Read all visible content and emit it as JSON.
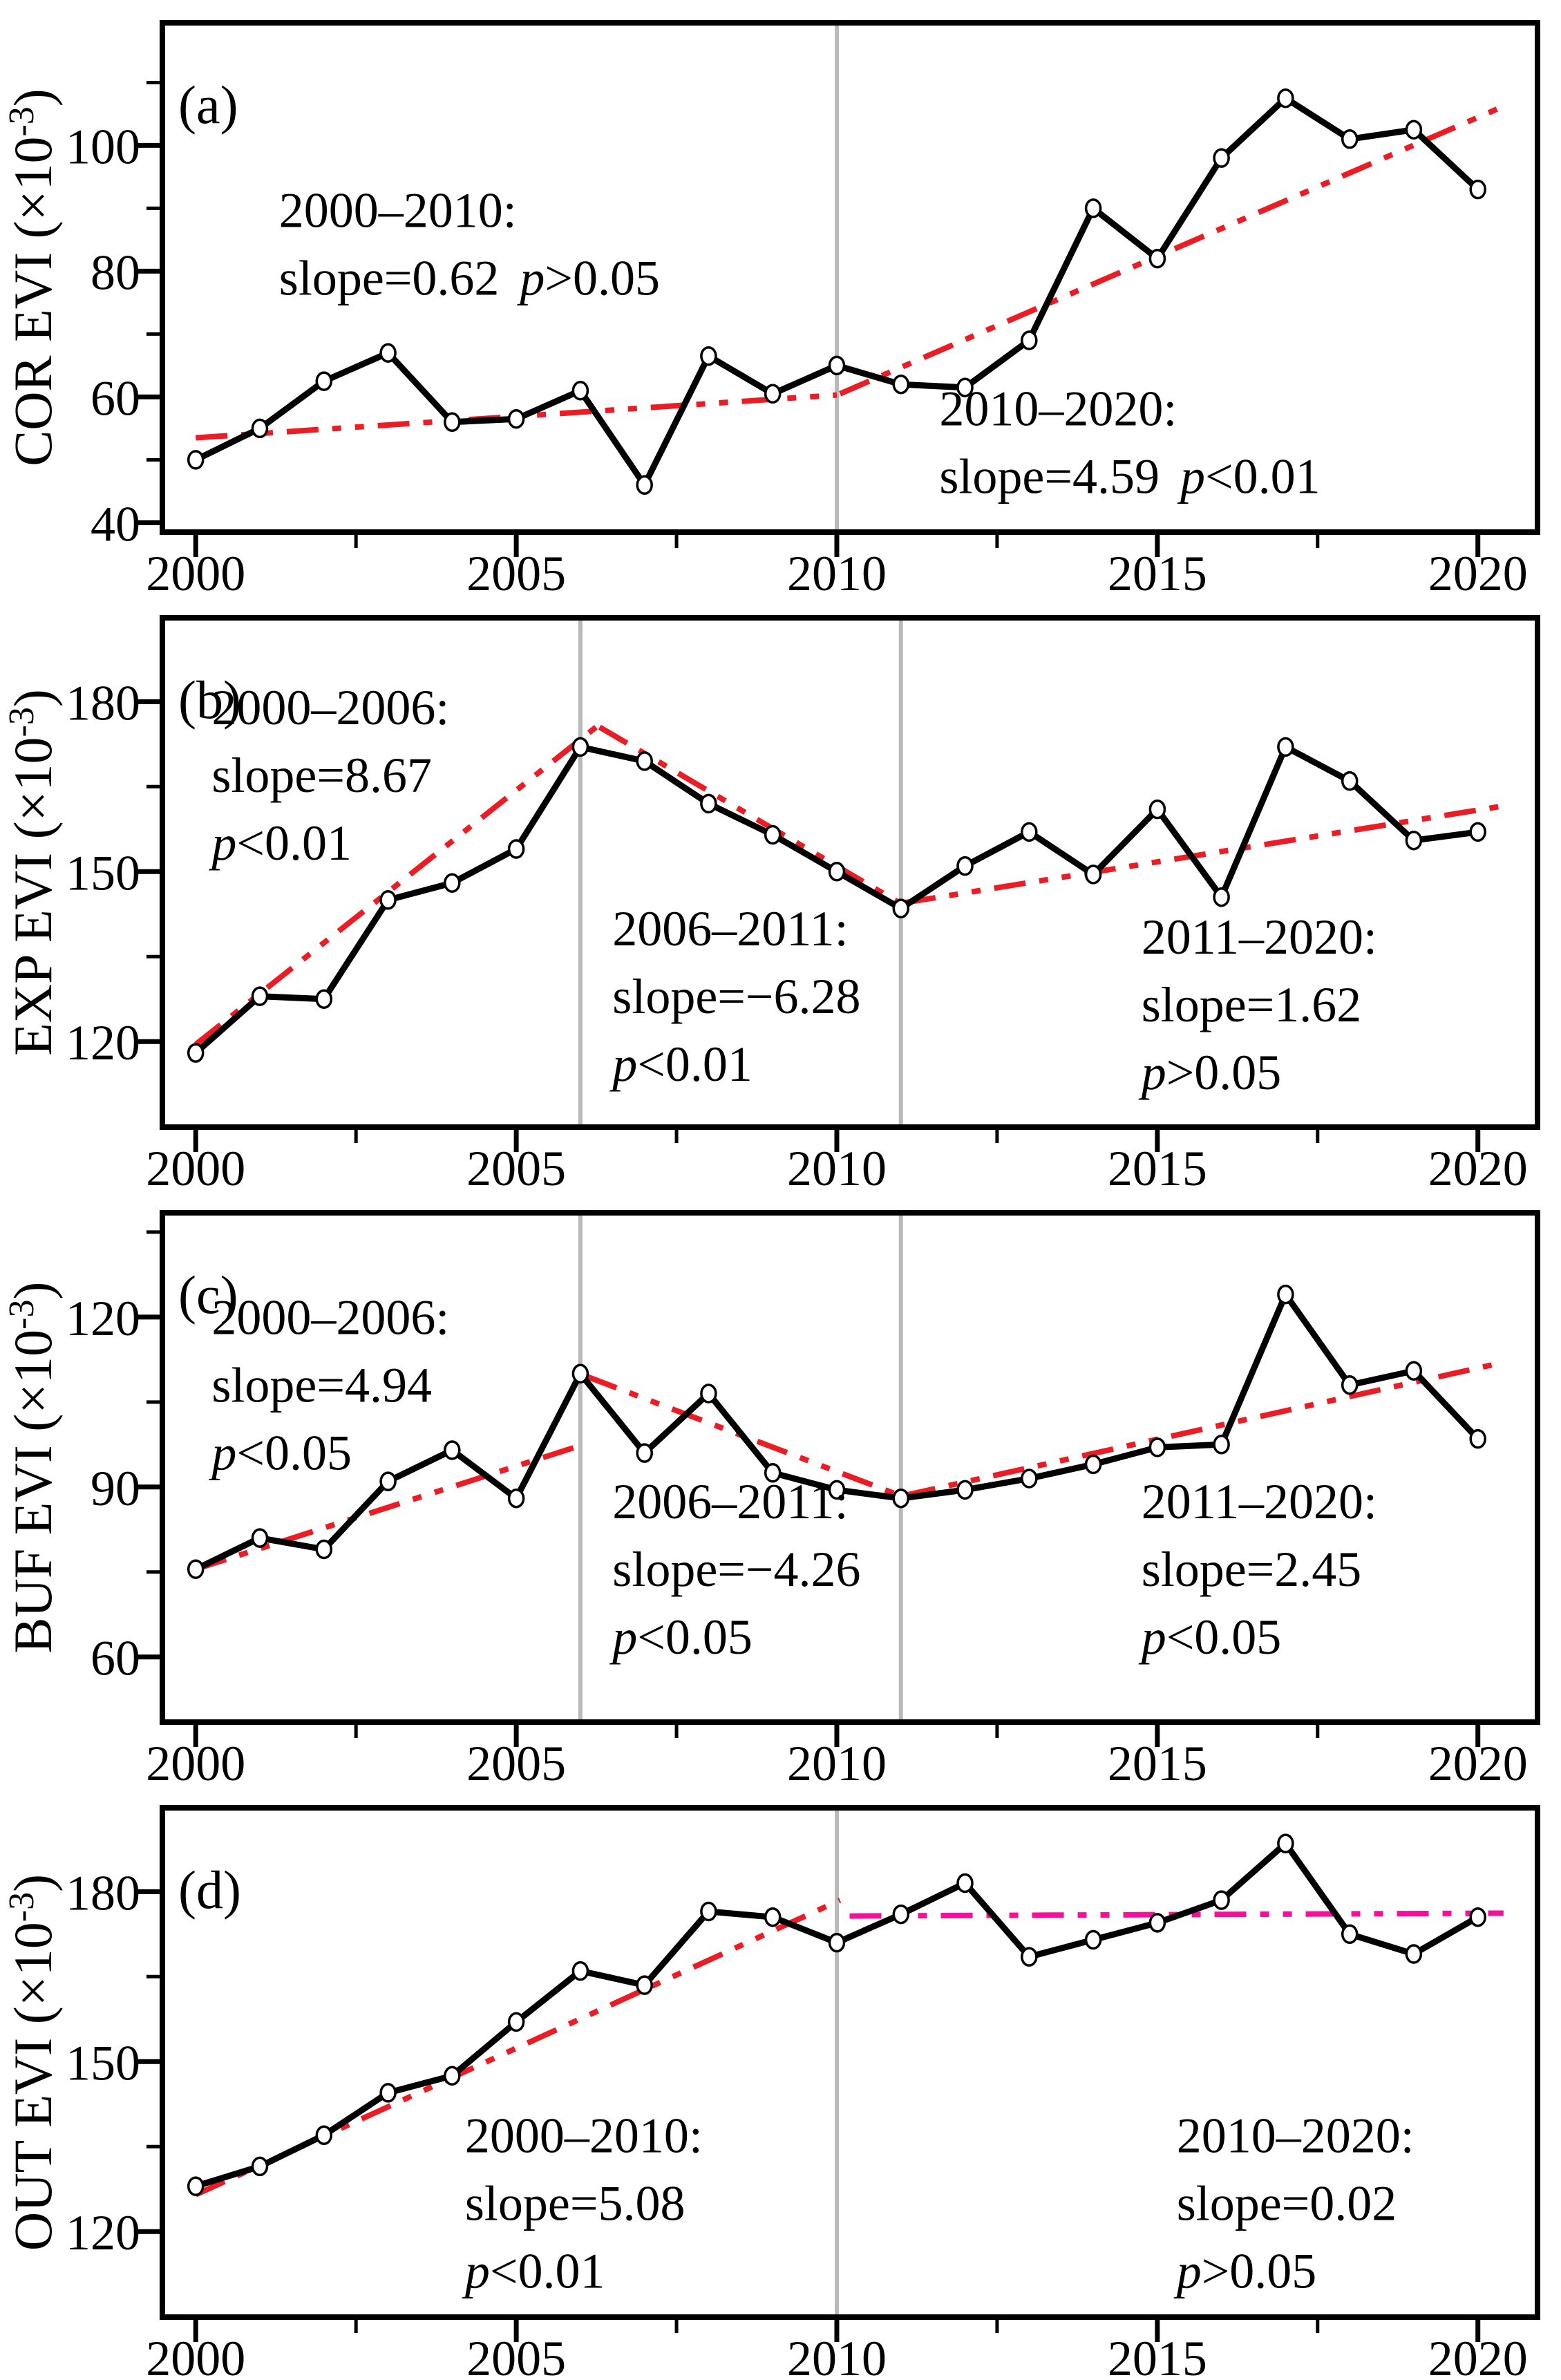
{
  "colors": {
    "red": "#ec1c24",
    "magenta": "#f5109a",
    "gray": "#b9b9b9",
    "black": "#000000",
    "marker_fill": "#ffffff"
  },
  "chart_data": {
    "type": "line",
    "x": [
      2000,
      2001,
      2002,
      2003,
      2004,
      2005,
      2006,
      2007,
      2008,
      2009,
      2010,
      2011,
      2012,
      2013,
      2014,
      2015,
      2016,
      2017,
      2018,
      2019,
      2020
    ],
    "xlim": [
      1999.48,
      2020.93
    ],
    "xticks": [
      2000,
      2005,
      2010,
      2015,
      2020
    ],
    "xticks_minor": [
      2002.5,
      2007.5,
      2012.5,
      2017.5
    ],
    "legend": "none",
    "grid": "off",
    "panels": [
      {
        "label": "(a)",
        "ylabel": "COR EVI (×10⁻³)",
        "ylabel_parts": {
          "prefix": "COR EVI (×10",
          "sup": "-3",
          "suffix": ")"
        },
        "ylim": [
          38.5,
          119.5
        ],
        "yticks": [
          40,
          60,
          80,
          100
        ],
        "yticks_minor": [
          50,
          70,
          90,
          110
        ],
        "values": [
          50,
          55,
          62.5,
          67,
          56,
          56.5,
          61,
          46,
          66.5,
          60.5,
          65,
          62,
          61.5,
          69,
          90,
          82,
          98,
          107.5,
          101,
          102.5,
          93
        ],
        "breakpoint_lines": [
          2010
        ],
        "trend_segments": [
          {
            "x1": 2000,
            "y1": 53.5,
            "x2": 2010,
            "y2": 60.3,
            "color": "red"
          },
          {
            "x1": 2010.05,
            "y1": 60.5,
            "x2": 2020.35,
            "y2": 106,
            "color": "red"
          }
        ],
        "annotations": [
          {
            "x": 2001.3,
            "y": 87,
            "lines": [
              [
                {
                  "t": "2000–2010:"
                }
              ],
              [
                {
                  "t": "slope=0.62"
                },
                {
                  "t": "p",
                  "i": true,
                  "dx": 30
                },
                {
                  "t": ">0.05"
                }
              ]
            ]
          },
          {
            "x": 2011.6,
            "y": 55.5,
            "lines": [
              [
                {
                  "t": "2010–2020:"
                }
              ],
              [
                {
                  "t": "slope=4.59"
                },
                {
                  "t": "p",
                  "i": true,
                  "dx": 30
                },
                {
                  "t": "<0.01"
                }
              ]
            ]
          }
        ]
      },
      {
        "label": "(b)",
        "ylabel": "EXP EVI (×10⁻³)",
        "ylabel_parts": {
          "prefix": "EXP EVI (×10",
          "sup": "-3",
          "suffix": ")"
        },
        "ylim": [
          104.9,
          194.8
        ],
        "yticks": [
          120,
          150,
          180
        ],
        "yticks_minor": [
          135,
          165
        ],
        "values": [
          118,
          128,
          127.5,
          145,
          148,
          154,
          172,
          169.5,
          162,
          156.5,
          150,
          143.5,
          151,
          157,
          149.5,
          161,
          145.5,
          172,
          166,
          155.5,
          157
        ],
        "breakpoint_lines": [
          2006,
          2011
        ],
        "trend_segments": [
          {
            "x1": 2000,
            "y1": 119.5,
            "x2": 2006.3,
            "y2": 176,
            "color": "red"
          },
          {
            "x1": 2006.3,
            "y1": 175.5,
            "x2": 2011.05,
            "y2": 144,
            "color": "red"
          },
          {
            "x1": 2011.05,
            "y1": 144.5,
            "x2": 2020.35,
            "y2": 161.5,
            "color": "red"
          }
        ],
        "annotations": [
          {
            "x": 2000.25,
            "y": 176,
            "lines": [
              [
                {
                  "t": "2000–2006:"
                }
              ],
              [
                {
                  "t": "slope=8.67"
                }
              ],
              [
                {
                  "t": "p",
                  "i": true
                },
                {
                  "t": "<0.01"
                }
              ]
            ]
          },
          {
            "x": 2006.5,
            "y": 137,
            "lines": [
              [
                {
                  "t": "2006–2011:"
                }
              ],
              [
                {
                  "t": "slope=−6.28"
                }
              ],
              [
                {
                  "t": "p",
                  "i": true
                },
                {
                  "t": "<0.01"
                }
              ]
            ]
          },
          {
            "x": 2014.75,
            "y": 135.5,
            "lines": [
              [
                {
                  "t": "2011–2020:"
                }
              ],
              [
                {
                  "t": "slope=1.62"
                }
              ],
              [
                {
                  "t": "p",
                  "i": true
                },
                {
                  "t": ">0.05"
                }
              ]
            ]
          }
        ]
      },
      {
        "label": "(c)",
        "ylabel": "BUF EVI (×10⁻³)",
        "ylabel_parts": {
          "prefix": "BUF EVI (×10",
          "sup": "-3",
          "suffix": ")"
        },
        "ylim": [
          48.5,
          138.4
        ],
        "yticks": [
          60,
          90,
          120
        ],
        "yticks_minor": [
          75,
          105,
          135
        ],
        "values": [
          75.5,
          81,
          79,
          91,
          96.5,
          88,
          110,
          96,
          106.5,
          92.5,
          89.5,
          88,
          89.5,
          91.5,
          94,
          97,
          97.5,
          124,
          108,
          110.5,
          98.5
        ],
        "breakpoint_lines": [
          2006,
          2011
        ],
        "trend_segments": [
          {
            "x1": 2000,
            "y1": 75.5,
            "x2": 2006.05,
            "y2": 97.5,
            "color": "red"
          },
          {
            "x1": 2006.1,
            "y1": 109.5,
            "x2": 2011.1,
            "y2": 88,
            "color": "red"
          },
          {
            "x1": 2011.05,
            "y1": 88.5,
            "x2": 2020.4,
            "y2": 112,
            "color": "red"
          }
        ],
        "annotations": [
          {
            "x": 2000.25,
            "y": 117,
            "lines": [
              [
                {
                  "t": "2000–2006:"
                }
              ],
              [
                {
                  "t": "slope=4.94"
                }
              ],
              [
                {
                  "t": "p",
                  "i": true
                },
                {
                  "t": "<0.05"
                }
              ]
            ]
          },
          {
            "x": 2006.5,
            "y": 84.5,
            "lines": [
              [
                {
                  "t": "2006–2011:"
                }
              ],
              [
                {
                  "t": "slope=−4.26"
                }
              ],
              [
                {
                  "t": "p",
                  "i": true
                },
                {
                  "t": "<0.05"
                }
              ]
            ]
          },
          {
            "x": 2014.75,
            "y": 84.5,
            "lines": [
              [
                {
                  "t": "2011–2020:"
                }
              ],
              [
                {
                  "t": "slope=2.45"
                }
              ],
              [
                {
                  "t": "p",
                  "i": true
                },
                {
                  "t": "<0.05"
                }
              ]
            ]
          }
        ]
      },
      {
        "label": "(d)",
        "ylabel": "OUT EVI (×10⁻³)",
        "ylabel_parts": {
          "prefix": "OUT EVI (×10",
          "sup": "-3",
          "suffix": ")"
        },
        "ylim": [
          104.9,
          194.8
        ],
        "yticks": [
          120,
          150,
          180
        ],
        "yticks_minor": [
          135,
          165
        ],
        "values": [
          128,
          131.5,
          137,
          144.5,
          147.5,
          157,
          166,
          163.5,
          176.5,
          175.5,
          171,
          176,
          181.5,
          168.5,
          171.5,
          174.5,
          178.5,
          188.5,
          172.5,
          169,
          175.5
        ],
        "breakpoint_lines": [
          2010
        ],
        "trend_segments": [
          {
            "x1": 2000,
            "y1": 126.5,
            "x2": 2010.05,
            "y2": 178.5,
            "color": "red"
          },
          {
            "x1": 2010.2,
            "y1": 175.7,
            "x2": 2020.4,
            "y2": 176.2,
            "color": "magenta"
          }
        ],
        "annotations": [
          {
            "x": 2004.2,
            "y": 134,
            "lines": [
              [
                {
                  "t": "2000–2010:"
                }
              ],
              [
                {
                  "t": "slope=5.08"
                }
              ],
              [
                {
                  "t": "p",
                  "i": true
                },
                {
                  "t": "<0.01"
                }
              ]
            ]
          },
          {
            "x": 2015.3,
            "y": 134,
            "lines": [
              [
                {
                  "t": "2010–2020:"
                }
              ],
              [
                {
                  "t": "slope=0.02"
                }
              ],
              [
                {
                  "t": "p",
                  "i": true
                },
                {
                  "t": ">0.05"
                }
              ]
            ]
          }
        ]
      }
    ]
  }
}
